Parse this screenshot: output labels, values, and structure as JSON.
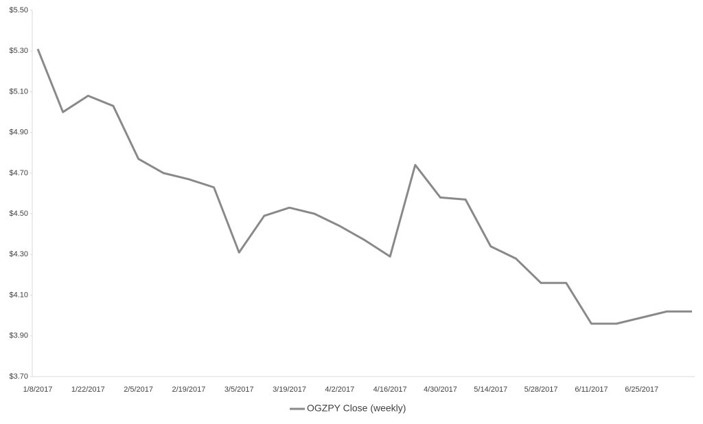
{
  "chart_data": {
    "type": "line",
    "categories": [
      "1/8/2017",
      null,
      "1/22/2017",
      null,
      "2/5/2017",
      null,
      "2/19/2017",
      null,
      "3/5/2017",
      null,
      "3/19/2017",
      null,
      "4/2/2017",
      null,
      "4/16/2017",
      null,
      "4/30/2017",
      null,
      "5/14/2017",
      null,
      "5/28/2017",
      null,
      "6/11/2017",
      null,
      "6/25/2017",
      null,
      null
    ],
    "series": [
      {
        "name": "OGZPY Close (weekly)",
        "color": "#898989",
        "values": [
          5.31,
          5.0,
          5.08,
          5.03,
          4.77,
          4.7,
          4.67,
          4.63,
          4.31,
          4.49,
          4.53,
          4.5,
          4.44,
          4.37,
          4.29,
          4.74,
          4.58,
          4.57,
          4.34,
          4.28,
          4.16,
          4.16,
          3.96,
          3.96,
          3.99,
          4.02,
          4.02
        ]
      }
    ],
    "ylim": [
      3.7,
      5.5
    ],
    "yticks": [
      {
        "value": 3.7,
        "label": "$3.70"
      },
      {
        "value": 3.9,
        "label": "$3.90"
      },
      {
        "value": 4.1,
        "label": "$4.10"
      },
      {
        "value": 4.3,
        "label": "$4.30"
      },
      {
        "value": 4.5,
        "label": "$4.50"
      },
      {
        "value": 4.7,
        "label": "$4.70"
      },
      {
        "value": 4.9,
        "label": "$4.90"
      },
      {
        "value": 5.1,
        "label": "$5.10"
      },
      {
        "value": 5.3,
        "label": "$5.30"
      },
      {
        "value": 5.5,
        "label": "$5.50"
      }
    ],
    "grid": false,
    "legend": "bottom"
  }
}
